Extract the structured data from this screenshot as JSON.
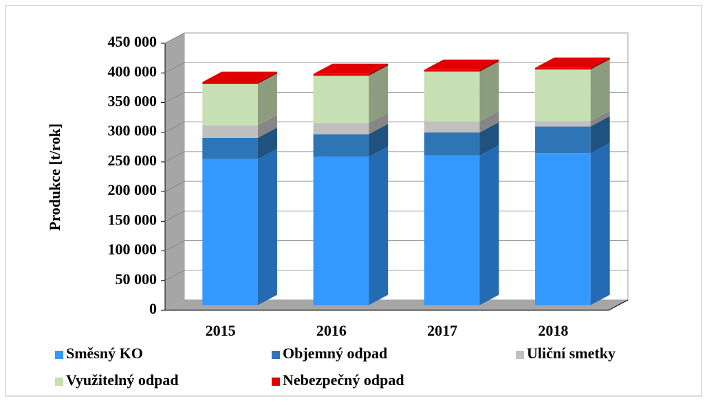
{
  "chart_data": {
    "type": "bar3d_stacked",
    "y_label": "Produkce [t/rok]",
    "categories": [
      "2015",
      "2016",
      "2017",
      "2018"
    ],
    "series": [
      {
        "name": "Směsný KO",
        "color": "#3399ff",
        "values": [
          246000,
          250000,
          252000,
          256000
        ]
      },
      {
        "name": "Objemný odpad",
        "color": "#2e75b6",
        "values": [
          36000,
          38000,
          39000,
          45000
        ]
      },
      {
        "name": "Uliční smetky",
        "color": "#c0c0c0",
        "values": [
          21000,
          18500,
          18500,
          9000
        ]
      },
      {
        "name": "Využitelný odpad",
        "color": "#c6e0b4",
        "values": [
          70000,
          80000,
          84000,
          87000
        ]
      },
      {
        "name": "Nebezpečný odpad",
        "color": "#e00000",
        "values": [
          3000,
          3000,
          3000,
          3000
        ]
      }
    ],
    "ylim": [
      0,
      450000
    ],
    "yticks": [
      0,
      {
        "value": 50000,
        "label": "50 000"
      },
      {
        "value": 100000,
        "label": "100 000"
      },
      {
        "value": 150000,
        "label": "150 000"
      },
      {
        "value": 200000,
        "label": "200 000"
      },
      {
        "value": 250000,
        "label": "250 000"
      },
      {
        "value": 300000,
        "label": "300 000"
      },
      {
        "value": 350000,
        "label": "350 000"
      },
      {
        "value": 400000,
        "label": "400 000"
      },
      {
        "value": 450000,
        "label": "450 000"
      }
    ],
    "grid": true
  }
}
